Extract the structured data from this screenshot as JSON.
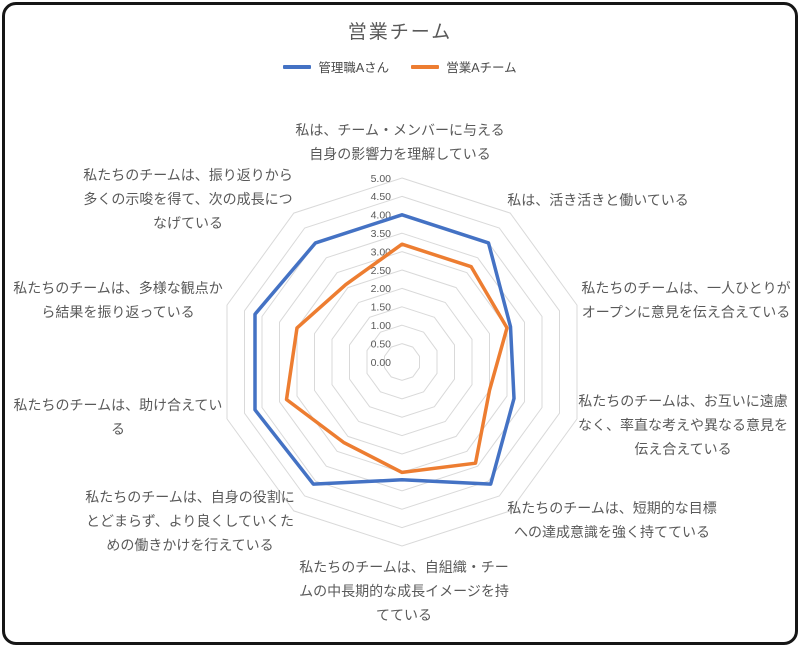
{
  "chart_data": {
    "type": "radar",
    "title": "営業チーム",
    "legend_position": "top",
    "grid": true,
    "gridline_color": "#D9D9D9",
    "label_color": "#595959",
    "axis": {
      "min": 0,
      "max": 5,
      "step": 0.5,
      "tick_labels": [
        "5.00",
        "4.50",
        "4.00",
        "3.50",
        "3.00",
        "2.50",
        "2.00",
        "1.50",
        "1.00",
        "0.50",
        "0.00"
      ]
    },
    "categories": [
      "私は、チーム・メンバーに与える自身の影響力を理解している",
      "私は、活き活きと働いている",
      "私たちのチームは、一人ひとりがオープンに意見を伝え合えている",
      "私たちのチームは、お互いに遠慮なく、率直な考えや異なる意見を伝え合えている",
      "私たちのチームは、短期的な目標への達成意識を強く持てている",
      "私たちのチームは、自組織・チームの中長期的な成長イメージを持てている",
      "私たちのチームは、自身の役割にとどまらず、より良くしていくための働きかけを行えている",
      "私たちのチームは、助け合えている",
      "私たちのチームは、多様な観点から結果を振り返っている",
      "私たちのチームは、振り返りから多くの示唆を得て、次の成長につなげている"
    ],
    "label_lines": [
      [
        "私は、チーム・メンバーに与える",
        "自身の影響力を理解している"
      ],
      [
        "私は、活き活きと働いている"
      ],
      [
        "私たちのチームは、一人ひとりが",
        "オープンに意見を伝え合えている"
      ],
      [
        "私たちのチームは、お互いに遠慮",
        "なく、率直な考えや異なる意見を",
        "伝え合えている"
      ],
      [
        "私たちのチームは、短期的な目標",
        "への達成意識を強く持てている"
      ],
      [
        "私たちのチームは、自組織・チー",
        "ムの中長期的な成長イメージを持",
        "てている"
      ],
      [
        "私たちのチームは、自身の役割に",
        "とどまらず、より良くしていくた",
        "めの働きかけを行えている"
      ],
      [
        "私たちのチームは、助け合えてい",
        "る"
      ],
      [
        "私たちのチームは、多様な観点か",
        "ら結果を振り返っている"
      ],
      [
        "私たちのチームは、振り返りから",
        "多くの示唆を得て、次の成長につ",
        "なげている"
      ]
    ],
    "series": [
      {
        "name": "管理職Aさん",
        "color": "#4472C4",
        "values": [
          4.0,
          4.0,
          3.1,
          3.2,
          4.1,
          3.2,
          4.1,
          4.2,
          4.2,
          4.0
        ]
      },
      {
        "name": "営業Aチーム",
        "color": "#ED7D31",
        "values": [
          3.2,
          3.2,
          3.0,
          2.5,
          3.4,
          3.0,
          2.7,
          3.3,
          3.0,
          2.6
        ]
      }
    ]
  }
}
